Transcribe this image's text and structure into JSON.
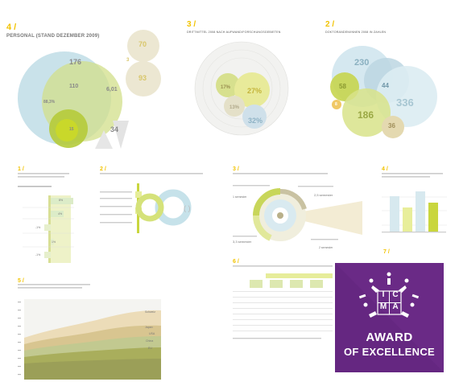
{
  "page": {
    "personal": {
      "section_num": "4 /",
      "title": "PERSONAL (STAND DEZEMBER 2009)",
      "values": [
        "176",
        "110",
        "88,3%",
        "15",
        "70",
        "93",
        "3",
        "6,01",
        "34"
      ]
    },
    "drittmittel": {
      "section_num": "3 /",
      "title": "DRITTMITTEL 2008 NACH AUFWAND/FORSCHUNGSGEBIETEN",
      "values": [
        "27%",
        "17%",
        "13%",
        "32%"
      ]
    },
    "doktoranden": {
      "section_num": "2 /",
      "title": "DOKTORANDEN/INNEN 2008 IN ZAHLEN",
      "values": [
        "230",
        "58",
        "44",
        "336",
        "186",
        "36",
        "8"
      ]
    },
    "small_section_nums": [
      "1 /",
      "2 /",
      "3 /",
      "4 /",
      "5 /",
      "6 /",
      "7 /"
    ],
    "mid_right": {
      "labels": [
        "1 semester",
        "2,5 semester",
        "3,3 semester",
        "2 semester"
      ]
    },
    "bar_chart": {
      "percent_labels": [
        "8%",
        "4%",
        "-1%",
        "1%",
        "-1%"
      ]
    },
    "area_chart": {
      "legend": [
        "Schweiz",
        "Japan",
        "USA",
        "China",
        "EU"
      ]
    },
    "award": {
      "logo_letters": [
        "I",
        "C",
        "M",
        "A"
      ],
      "line1": "AWARD",
      "line2": "OF EXCELLENCE"
    }
  },
  "colors": {
    "accent_yellow": "#f2c300",
    "green": "#c7d65a",
    "blue": "#bfdde6",
    "gray_circle": "#e4e1d4",
    "award_purple": "#6a2a86"
  }
}
